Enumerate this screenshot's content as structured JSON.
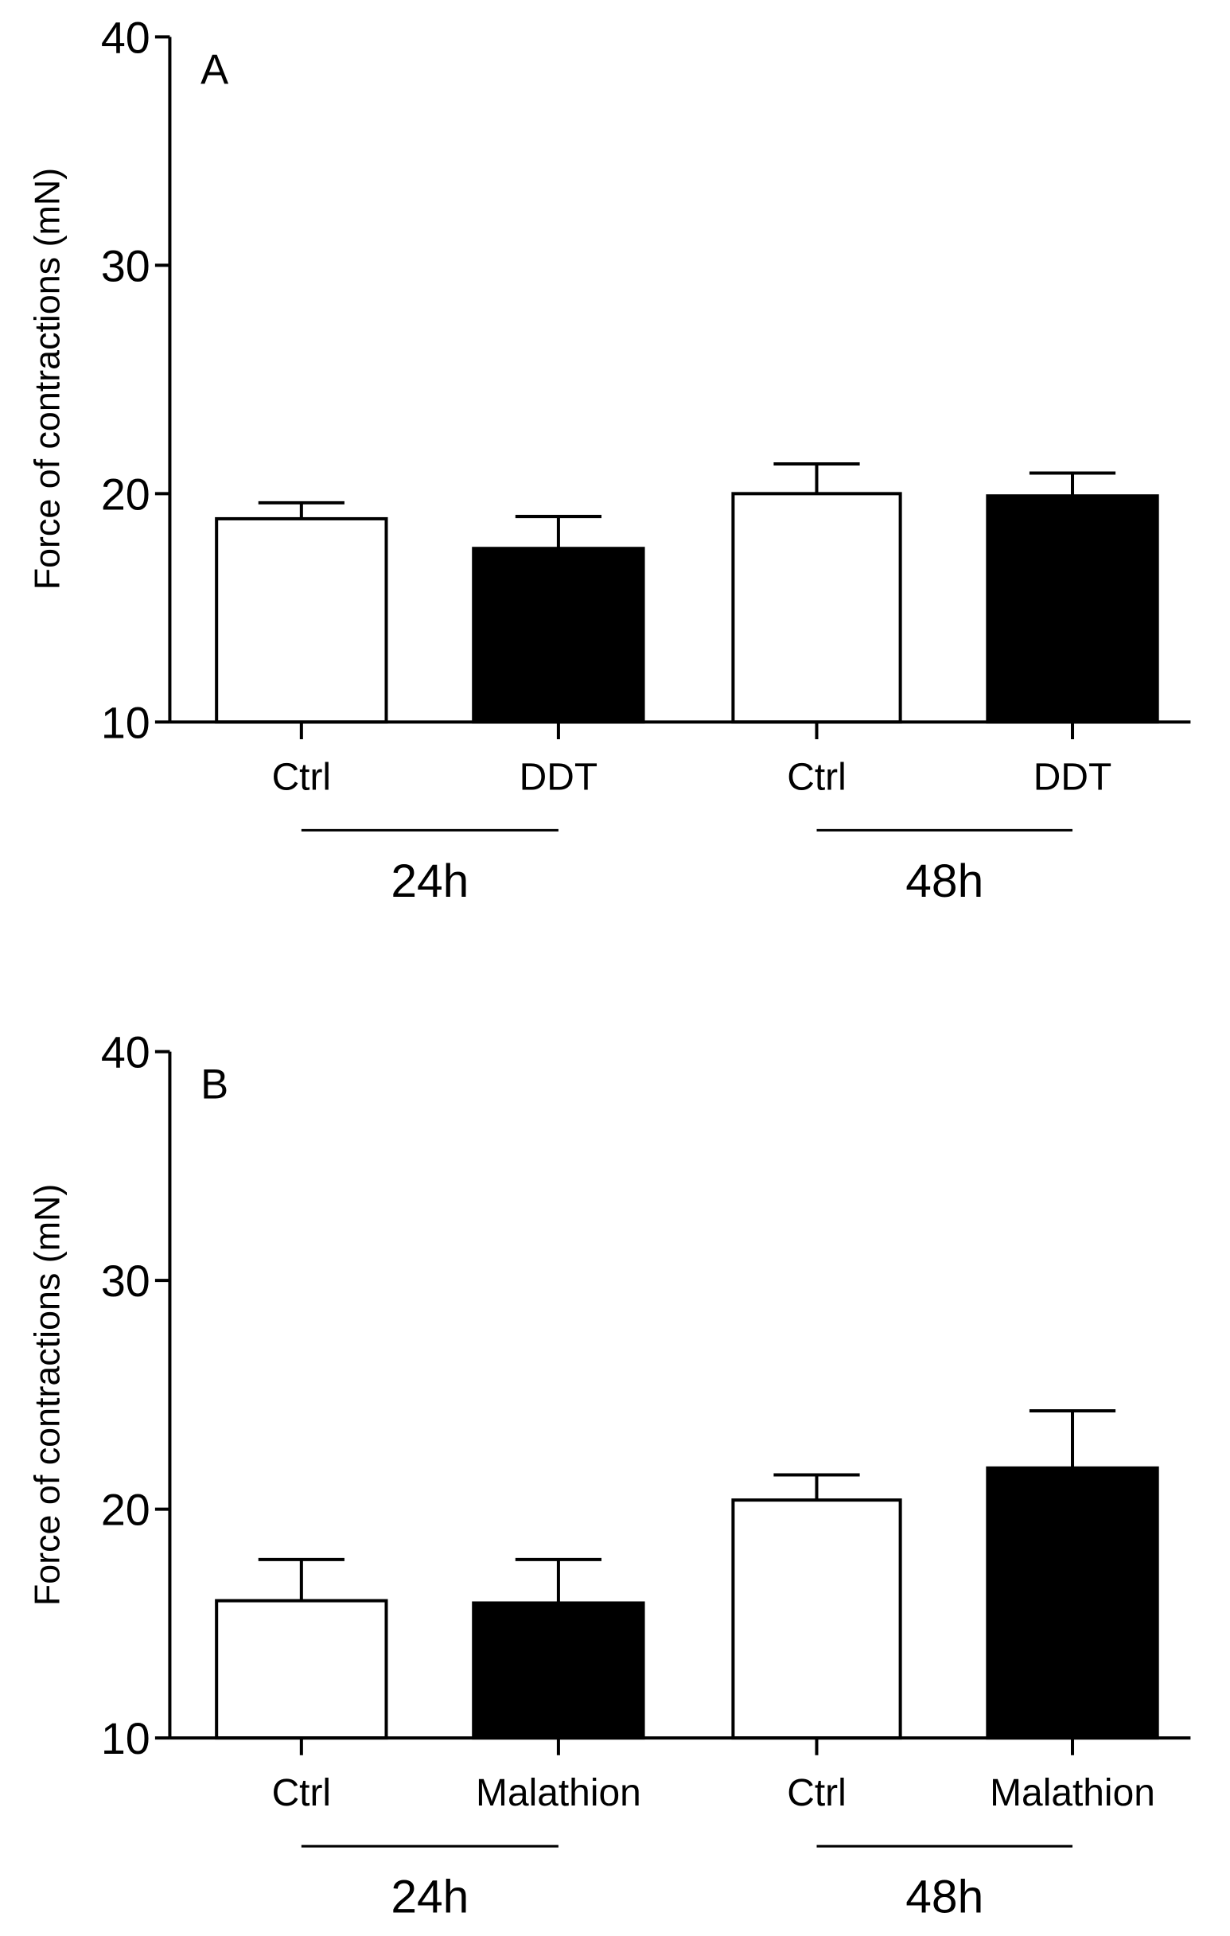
{
  "chart_data": [
    {
      "type": "bar",
      "panel_label": "A",
      "ylabel": "Force of contractions (mN)",
      "ylim": [
        10,
        40
      ],
      "yticks": [
        10,
        20,
        30,
        40
      ],
      "categories": [
        "Ctrl",
        "DDT",
        "Ctrl",
        "DDT"
      ],
      "groups": [
        {
          "label": "24h",
          "categories": [
            0,
            1
          ]
        },
        {
          "label": "48h",
          "categories": [
            2,
            3
          ]
        }
      ],
      "values": [
        18.9,
        17.6,
        20.0,
        19.9
      ],
      "error_upper": [
        19.6,
        19.0,
        21.3,
        20.9
      ],
      "fill_colors": [
        "#ffffff",
        "#000000",
        "#ffffff",
        "#000000"
      ],
      "grid": false
    },
    {
      "type": "bar",
      "panel_label": "B",
      "ylabel": "Force of contractions (mN)",
      "ylim": [
        10,
        40
      ],
      "yticks": [
        10,
        20,
        30,
        40
      ],
      "categories": [
        "Ctrl",
        "Malathion",
        "Ctrl",
        "Malathion"
      ],
      "groups": [
        {
          "label": "24h",
          "categories": [
            0,
            1
          ]
        },
        {
          "label": "48h",
          "categories": [
            2,
            3
          ]
        }
      ],
      "values": [
        16.0,
        15.9,
        20.4,
        21.8
      ],
      "error_upper": [
        17.8,
        17.8,
        21.5,
        24.3
      ],
      "fill_colors": [
        "#ffffff",
        "#000000",
        "#ffffff",
        "#000000"
      ],
      "grid": false
    }
  ]
}
